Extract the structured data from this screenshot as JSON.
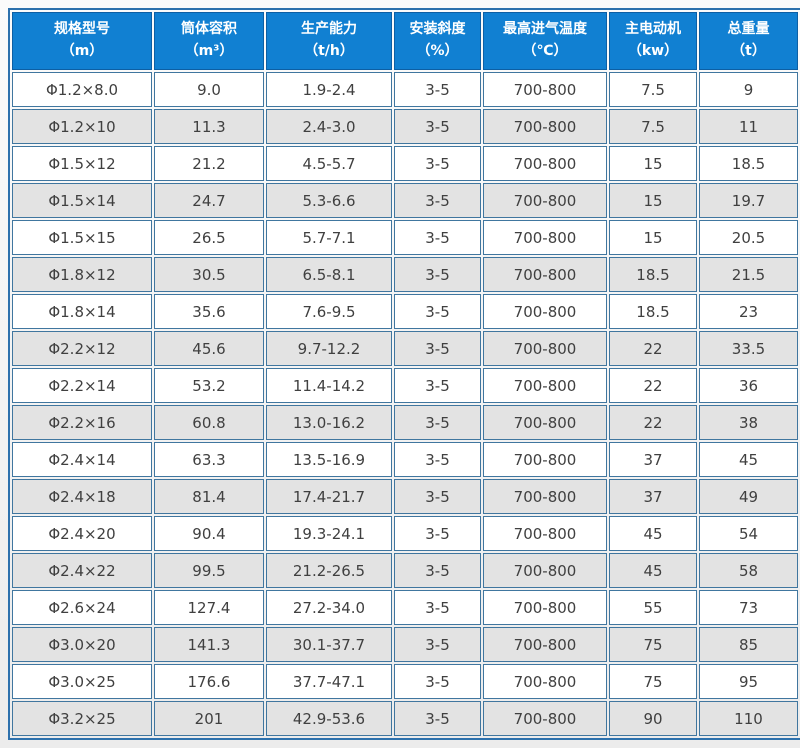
{
  "colors": {
    "header_bg": "#1180d2",
    "header_text": "#ffffff",
    "header_border": "#0d5fa4",
    "cell_border": "#40769f",
    "outer_border": "#2d71ad",
    "row_bg": "#ffffff",
    "row_alt_bg": "#e3e3e3",
    "text": "#404040",
    "page_bg": "#f2f2f2"
  },
  "chart_data": {
    "type": "table",
    "title": "",
    "columns": [
      {
        "label": "规格型号",
        "unit": "（m）"
      },
      {
        "label": "筒体容积",
        "unit": "（m³）"
      },
      {
        "label": "生产能力",
        "unit": "（t/h）"
      },
      {
        "label": "安装斜度",
        "unit": "（%）"
      },
      {
        "label": "最高进气温度",
        "unit": "（℃）"
      },
      {
        "label": "主电动机",
        "unit": "（kw）"
      },
      {
        "label": "总重量",
        "unit": "（t）"
      }
    ],
    "rows": [
      [
        "Φ1.2×8.0",
        "9.0",
        "1.9-2.4",
        "3-5",
        "700-800",
        "7.5",
        "9"
      ],
      [
        "Φ1.2×10",
        "11.3",
        "2.4-3.0",
        "3-5",
        "700-800",
        "7.5",
        "11"
      ],
      [
        "Φ1.5×12",
        "21.2",
        "4.5-5.7",
        "3-5",
        "700-800",
        "15",
        "18.5"
      ],
      [
        "Φ1.5×14",
        "24.7",
        "5.3-6.6",
        "3-5",
        "700-800",
        "15",
        "19.7"
      ],
      [
        "Φ1.5×15",
        "26.5",
        "5.7-7.1",
        "3-5",
        "700-800",
        "15",
        "20.5"
      ],
      [
        "Φ1.8×12",
        "30.5",
        "6.5-8.1",
        "3-5",
        "700-800",
        "18.5",
        "21.5"
      ],
      [
        "Φ1.8×14",
        "35.6",
        "7.6-9.5",
        "3-5",
        "700-800",
        "18.5",
        "23"
      ],
      [
        "Φ2.2×12",
        "45.6",
        "9.7-12.2",
        "3-5",
        "700-800",
        "22",
        "33.5"
      ],
      [
        "Φ2.2×14",
        "53.2",
        "11.4-14.2",
        "3-5",
        "700-800",
        "22",
        "36"
      ],
      [
        "Φ2.2×16",
        "60.8",
        "13.0-16.2",
        "3-5",
        "700-800",
        "22",
        "38"
      ],
      [
        "Φ2.4×14",
        "63.3",
        "13.5-16.9",
        "3-5",
        "700-800",
        "37",
        "45"
      ],
      [
        "Φ2.4×18",
        "81.4",
        "17.4-21.7",
        "3-5",
        "700-800",
        "37",
        "49"
      ],
      [
        "Φ2.4×20",
        "90.4",
        "19.3-24.1",
        "3-5",
        "700-800",
        "45",
        "54"
      ],
      [
        "Φ2.4×22",
        "99.5",
        "21.2-26.5",
        "3-5",
        "700-800",
        "45",
        "58"
      ],
      [
        "Φ2.6×24",
        "127.4",
        "27.2-34.0",
        "3-5",
        "700-800",
        "55",
        "73"
      ],
      [
        "Φ3.0×20",
        "141.3",
        "30.1-37.7",
        "3-5",
        "700-800",
        "75",
        "85"
      ],
      [
        "Φ3.0×25",
        "176.6",
        "37.7-47.1",
        "3-5",
        "700-800",
        "75",
        "95"
      ],
      [
        "Φ3.2×25",
        "201",
        "42.9-53.6",
        "3-5",
        "700-800",
        "90",
        "110"
      ]
    ]
  }
}
